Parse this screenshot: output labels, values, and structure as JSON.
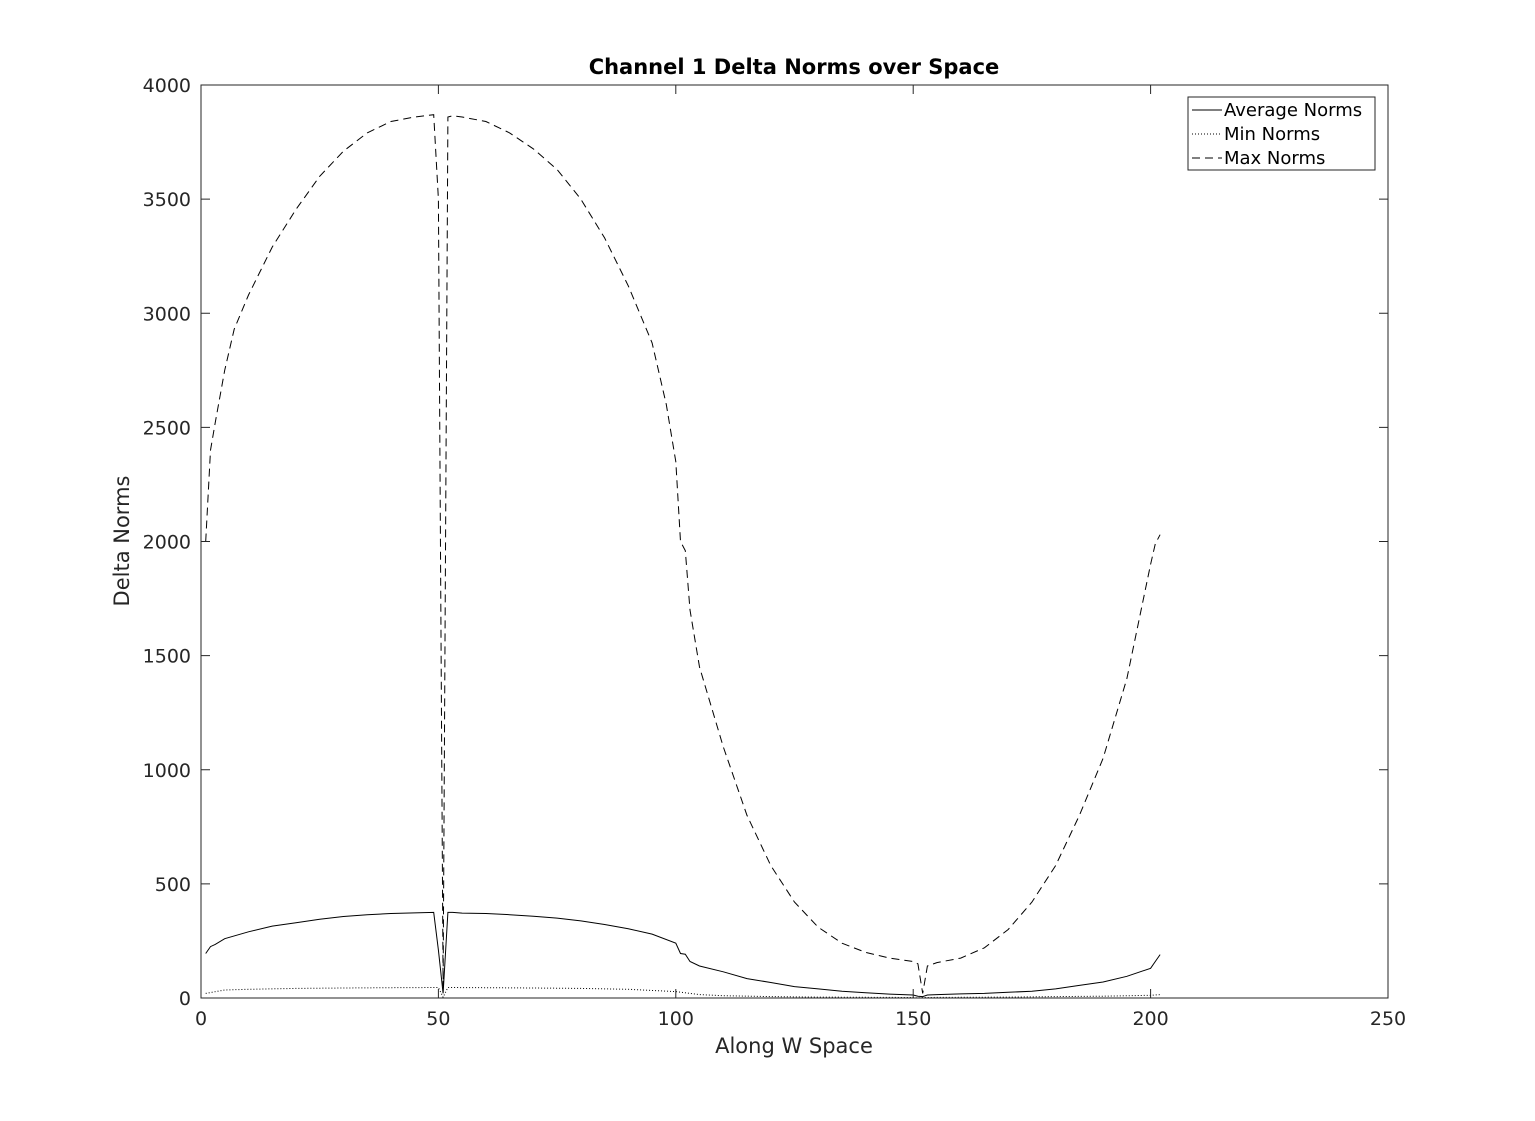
{
  "chart_data": {
    "type": "line",
    "title": "Channel 1 Delta Norms over Space",
    "xlabel": "Along W Space",
    "ylabel": "Delta Norms",
    "xlim": [
      0,
      250
    ],
    "ylim": [
      0,
      4000
    ],
    "xticks": [
      0,
      50,
      100,
      150,
      200,
      250
    ],
    "yticks": [
      0,
      500,
      1000,
      1500,
      2000,
      2500,
      3000,
      3500,
      4000
    ],
    "grid": false,
    "legend_position": "top-right",
    "series": [
      {
        "name": "Average Norms",
        "style": "solid",
        "color": "#000000",
        "x": [
          1,
          2,
          3,
          5,
          10,
          15,
          20,
          25,
          30,
          35,
          40,
          45,
          49,
          50,
          51,
          52,
          53,
          55,
          60,
          65,
          70,
          75,
          80,
          85,
          90,
          95,
          100,
          101,
          102,
          103,
          105,
          110,
          115,
          120,
          125,
          130,
          135,
          140,
          145,
          150,
          151,
          152,
          153,
          155,
          160,
          165,
          170,
          175,
          180,
          185,
          190,
          195,
          200,
          201,
          202
        ],
        "values": [
          195,
          225,
          235,
          260,
          290,
          315,
          330,
          345,
          357,
          365,
          370,
          373,
          375,
          210,
          20,
          375,
          375,
          372,
          370,
          365,
          358,
          350,
          338,
          322,
          303,
          280,
          240,
          195,
          192,
          160,
          140,
          115,
          85,
          68,
          50,
          40,
          30,
          23,
          17,
          13,
          8,
          6,
          13,
          15,
          18,
          20,
          25,
          30,
          40,
          55,
          70,
          95,
          130,
          160,
          190
        ]
      },
      {
        "name": "Min Norms",
        "style": "dotted",
        "color": "#000000",
        "x": [
          1,
          5,
          10,
          20,
          30,
          40,
          50,
          51,
          52,
          60,
          70,
          80,
          90,
          100,
          105,
          110,
          120,
          130,
          140,
          150,
          151,
          152,
          160,
          170,
          180,
          190,
          200,
          202
        ],
        "values": [
          20,
          35,
          38,
          42,
          44,
          45,
          46,
          3,
          46,
          45,
          44,
          42,
          38,
          28,
          15,
          10,
          6,
          4,
          3,
          2,
          0,
          2,
          3,
          4,
          6,
          8,
          12,
          15
        ]
      },
      {
        "name": "Max Norms",
        "style": "dashed",
        "color": "#000000",
        "x": [
          1,
          2,
          3,
          5,
          7,
          10,
          15,
          20,
          25,
          30,
          35,
          40,
          45,
          49,
          50,
          51,
          52,
          53,
          55,
          60,
          65,
          70,
          75,
          80,
          85,
          90,
          95,
          98,
          100,
          101,
          102,
          103,
          105,
          110,
          115,
          120,
          125,
          130,
          135,
          140,
          145,
          150,
          151,
          152,
          153,
          155,
          160,
          165,
          170,
          175,
          180,
          185,
          190,
          195,
          198,
          200,
          201,
          202
        ],
        "values": [
          2000,
          2400,
          2520,
          2750,
          2930,
          3080,
          3290,
          3455,
          3600,
          3710,
          3790,
          3840,
          3860,
          3870,
          3500,
          50,
          3860,
          3865,
          3860,
          3840,
          3790,
          3720,
          3630,
          3500,
          3330,
          3120,
          2870,
          2600,
          2350,
          2000,
          1960,
          1700,
          1450,
          1100,
          800,
          580,
          420,
          310,
          240,
          200,
          175,
          160,
          150,
          20,
          140,
          155,
          175,
          220,
          300,
          420,
          580,
          800,
          1050,
          1400,
          1700,
          1900,
          1990,
          2030
        ]
      }
    ]
  }
}
